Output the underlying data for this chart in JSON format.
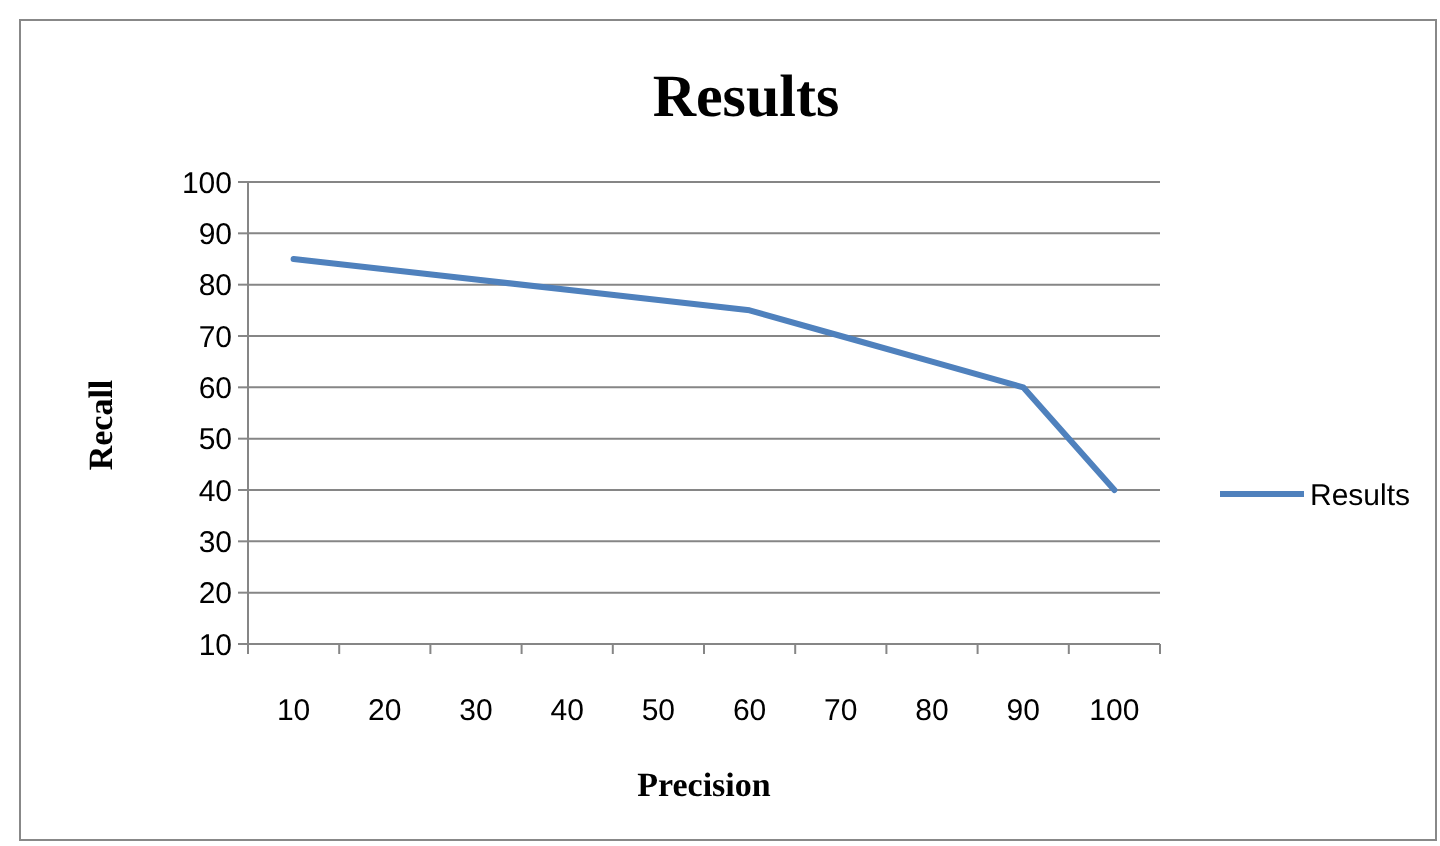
{
  "chart_data": {
    "type": "line",
    "title": "Results",
    "xlabel": "Precision",
    "ylabel": "Recall",
    "categories": [
      "10",
      "20",
      "30",
      "40",
      "50",
      "60",
      "70",
      "80",
      "90",
      "100"
    ],
    "series": [
      {
        "name": "Results",
        "color": "#4f81bd",
        "values": [
          85,
          83,
          81,
          79,
          77,
          75,
          70,
          65,
          60,
          40
        ]
      }
    ],
    "ylim": [
      10,
      100
    ],
    "yticks": [
      10,
      20,
      30,
      40,
      50,
      60,
      70,
      80,
      90,
      100
    ],
    "grid": "y",
    "legend": "right",
    "marker": "none",
    "line_style": "solid"
  }
}
